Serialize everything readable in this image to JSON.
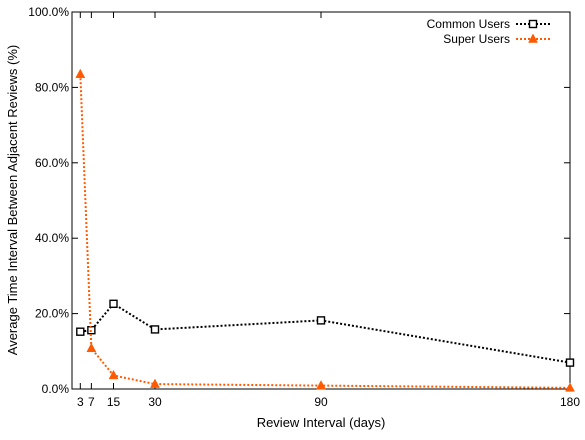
{
  "chart_data": {
    "type": "line",
    "xlabel": "Review Interval (days)",
    "ylabel": "Average Time Interval Between Adjacent Reviews (%)",
    "xlim": [
      0,
      180
    ],
    "ylim": [
      0,
      100
    ],
    "x_ticks": [
      3,
      7,
      15,
      30,
      90,
      180
    ],
    "x_tick_labels": [
      "3",
      "7",
      "15",
      "30",
      "90",
      "180"
    ],
    "y_ticks": [
      0,
      20,
      40,
      60,
      80,
      100
    ],
    "y_tick_labels": [
      "0.0%",
      "20.0%",
      "40.0%",
      "60.0%",
      "80.0%",
      "100.0%"
    ],
    "grid": false,
    "legend_position": "top-right",
    "x": [
      3,
      7,
      15,
      30,
      90,
      180
    ],
    "series": [
      {
        "name": "Common Users",
        "values": [
          15.2,
          15.6,
          22.6,
          15.8,
          18.2,
          7.0
        ],
        "color": "#000000",
        "marker": "open-square",
        "line_style": "dotted"
      },
      {
        "name": "Super Users",
        "values": [
          83.5,
          10.8,
          3.6,
          1.3,
          0.9,
          0.3
        ],
        "color": "#ff5a00",
        "marker": "filled-triangle",
        "line_style": "dotted"
      }
    ]
  }
}
